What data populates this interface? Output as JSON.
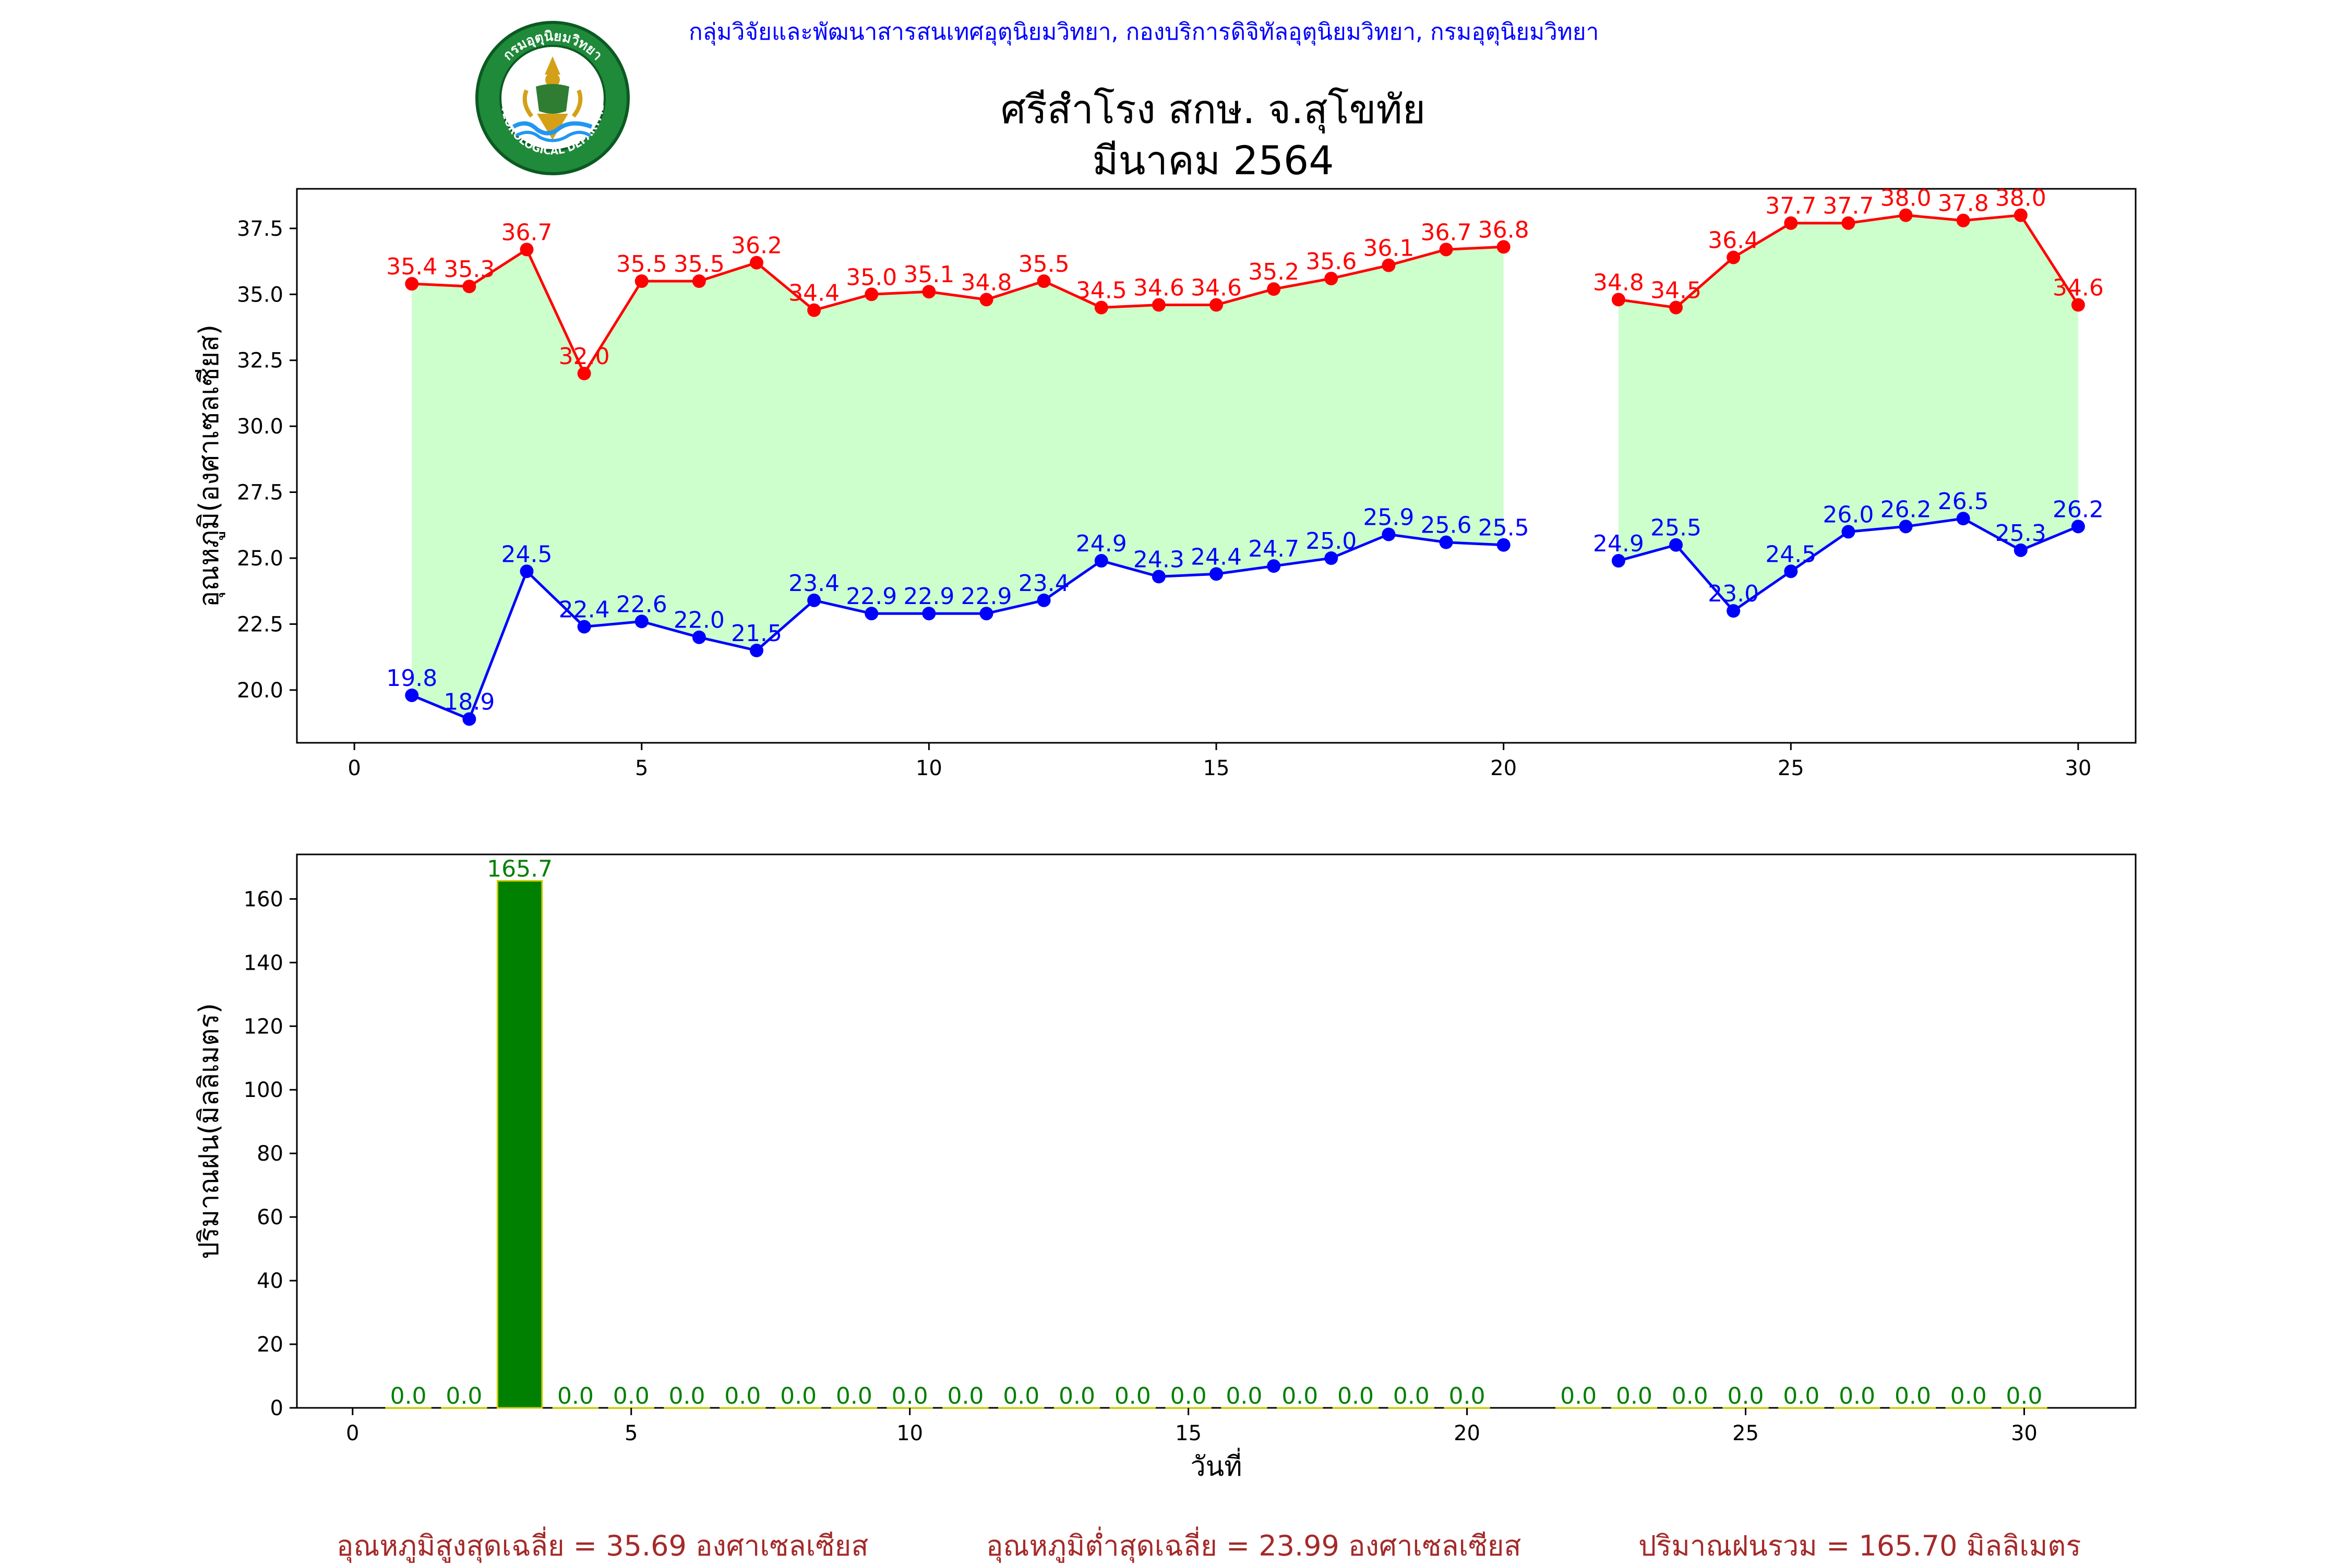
{
  "header": {
    "department_line": "กลุ่มวิจัยและพัฒนาสารสนเทศอุตุนิยมวิทยา, กองบริการดิจิทัลอุตุนิยมวิทยา, กรมอุตุนิยมวิทยา",
    "station": "ศรีสำโรง สกษ. จ.สุโขทัย",
    "period": "มีนาคม 2564",
    "logo_top_text": "กรมอุตุนิยมวิทยา",
    "logo_bottom_text": "METEOROLOGICAL DEPARTMENT"
  },
  "colors": {
    "max_temp": "#ff0000",
    "min_temp": "#0000ff",
    "fill": "#ccffcc",
    "rain_bar": "#008000",
    "rain_edge": "#cccc00",
    "header": "#0000ff",
    "footer": "#a52a2a"
  },
  "chart_data": [
    {
      "type": "line",
      "ylabel": "อุณหภูมิ(องศาเซลเซียส)",
      "xlim": [
        -1,
        31
      ],
      "ylim": [
        18,
        39
      ],
      "xticks": [
        0,
        5,
        10,
        15,
        20,
        25,
        30
      ],
      "yticks": [
        20.0,
        22.5,
        25.0,
        27.5,
        30.0,
        32.5,
        35.0,
        37.5
      ],
      "fill_between": true,
      "series": [
        {
          "key": "max",
          "x": [
            1,
            2,
            3,
            4,
            5,
            6,
            7,
            8,
            9,
            10,
            11,
            12,
            13,
            14,
            15,
            16,
            17,
            18,
            19,
            20,
            22,
            23,
            24,
            25,
            26,
            27,
            28,
            29,
            30
          ],
          "values": [
            35.4,
            35.3,
            36.7,
            32.0,
            35.5,
            35.5,
            36.2,
            34.4,
            35.0,
            35.1,
            34.8,
            35.5,
            34.5,
            34.6,
            34.6,
            35.2,
            35.6,
            36.1,
            36.7,
            36.8,
            34.8,
            34.5,
            36.4,
            37.7,
            37.7,
            38.0,
            37.8,
            38.0,
            34.6
          ]
        },
        {
          "key": "min",
          "x": [
            1,
            2,
            3,
            4,
            5,
            6,
            7,
            8,
            9,
            10,
            11,
            12,
            13,
            14,
            15,
            16,
            17,
            18,
            19,
            20,
            22,
            23,
            24,
            25,
            26,
            27,
            28,
            29,
            30
          ],
          "values": [
            19.8,
            18.9,
            24.5,
            22.4,
            22.6,
            22.0,
            21.5,
            23.4,
            22.9,
            22.9,
            22.9,
            23.4,
            24.9,
            24.3,
            24.4,
            24.7,
            25.0,
            25.9,
            25.6,
            25.5,
            24.9,
            25.5,
            23.0,
            24.5,
            26.0,
            26.2,
            26.5,
            25.3,
            26.2
          ]
        }
      ]
    },
    {
      "type": "bar",
      "xlabel": "วันที่",
      "ylabel": "ปริมาณฝน(มิลลิเมตร)",
      "xlim": [
        -1,
        32
      ],
      "ylim": [
        0,
        174
      ],
      "xticks": [
        0,
        5,
        10,
        15,
        20,
        25,
        30
      ],
      "yticks": [
        0,
        20,
        40,
        60,
        80,
        100,
        120,
        140,
        160
      ],
      "x": [
        1,
        2,
        3,
        4,
        5,
        6,
        7,
        8,
        9,
        10,
        11,
        12,
        13,
        14,
        15,
        16,
        17,
        18,
        19,
        20,
        22,
        23,
        24,
        25,
        26,
        27,
        28,
        29,
        30
      ],
      "values": [
        0.0,
        0.0,
        165.7,
        0.0,
        0.0,
        0.0,
        0.0,
        0.0,
        0.0,
        0.0,
        0.0,
        0.0,
        0.0,
        0.0,
        0.0,
        0.0,
        0.0,
        0.0,
        0.0,
        0.0,
        0.0,
        0.0,
        0.0,
        0.0,
        0.0,
        0.0,
        0.0,
        0.0,
        0.0
      ]
    }
  ],
  "summary": {
    "avg_max": "อุณหภูมิสูงสุดเฉลี่ย = 35.69 องศาเซลเซียส",
    "avg_min": "อุณหภูมิต่ำสุดเฉลี่ย = 23.99 องศาเซลเซียส",
    "total_rain": "ปริมาณฝนรวม = 165.70 มิลลิเมตร"
  }
}
